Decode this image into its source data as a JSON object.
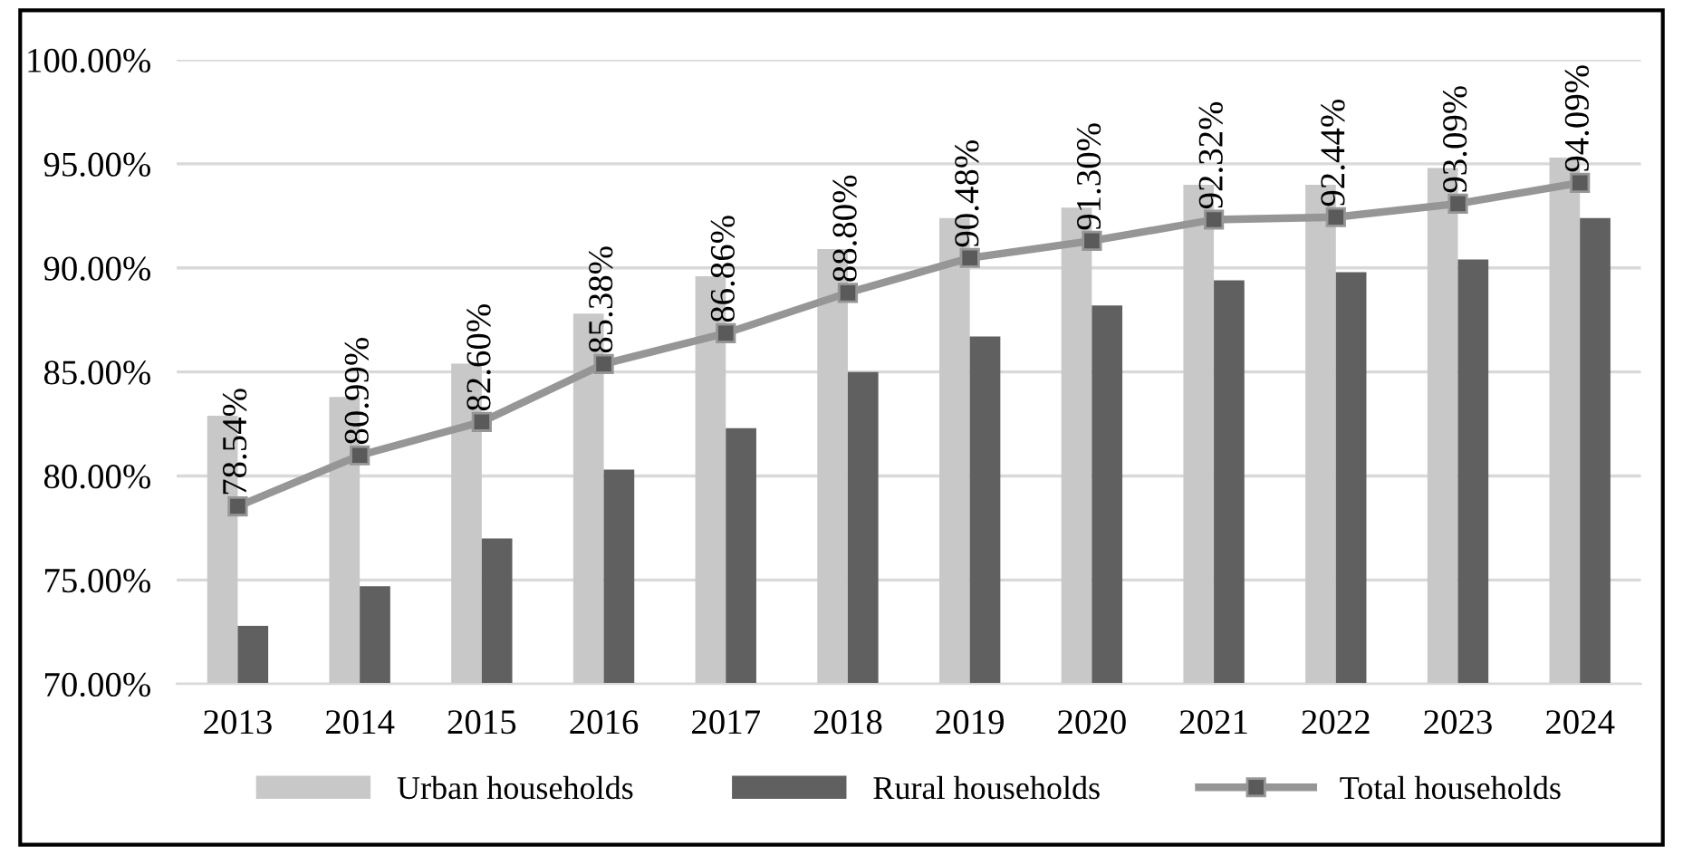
{
  "chart_data": {
    "type": "bar",
    "categories": [
      "2013",
      "2014",
      "2015",
      "2016",
      "2017",
      "2018",
      "2019",
      "2020",
      "2021",
      "2022",
      "2023",
      "2024"
    ],
    "series": [
      {
        "name": "Urban households",
        "color": "#c8c8c8",
        "values": [
          82.9,
          83.8,
          85.4,
          87.8,
          89.6,
          90.9,
          92.4,
          92.9,
          94.0,
          94.0,
          94.8,
          95.3
        ]
      },
      {
        "name": "Rural households",
        "color": "#606060",
        "values": [
          72.8,
          74.7,
          77.0,
          80.3,
          82.3,
          85.0,
          86.7,
          88.2,
          89.4,
          89.8,
          90.4,
          92.4
        ]
      },
      {
        "name": "Total households",
        "type": "line",
        "color": "#969696",
        "marker": "square",
        "values": [
          78.54,
          80.99,
          82.6,
          85.38,
          86.86,
          88.8,
          90.48,
          91.3,
          92.32,
          92.44,
          93.09,
          94.09
        ],
        "value_labels": [
          "78.54%",
          "80.99%",
          "82.60%",
          "85.38%",
          "86.86%",
          "88.80%",
          "90.48%",
          "91.30%",
          "92.32%",
          "92.44%",
          "93.09%",
          "94.09%"
        ]
      }
    ],
    "ylim": [
      70,
      100
    ],
    "yticks": [
      {
        "value": 70,
        "label": "70.00%"
      },
      {
        "value": 75,
        "label": "75.00%"
      },
      {
        "value": 80,
        "label": "80.00%"
      },
      {
        "value": 85,
        "label": "85.00%"
      },
      {
        "value": 90,
        "label": "90.00%"
      },
      {
        "value": 95,
        "label": "95.00%"
      },
      {
        "value": 100,
        "label": "100.00%"
      }
    ],
    "grid": "y",
    "legend": "bottom"
  }
}
